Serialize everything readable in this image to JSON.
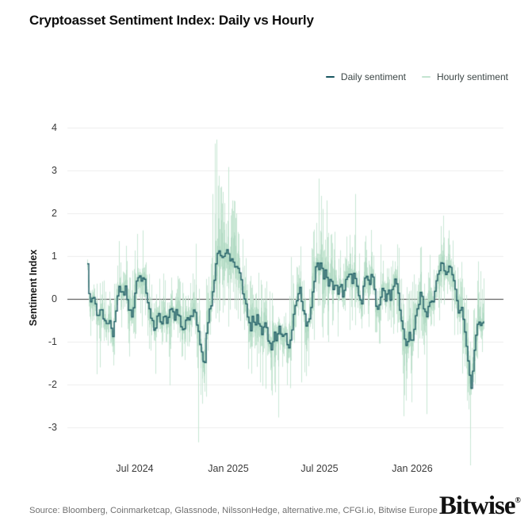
{
  "title": "Cryptoasset Sentiment Index: Daily vs Hourly",
  "legend": {
    "daily_label": "Daily sentiment",
    "hourly_label": "Hourly sentiment"
  },
  "source_line": "Source: Bloomberg, Coinmarketcap, Glassnode, NilssonHedge, alternative.me, CFGI.io, Bitwise Europe",
  "logo": {
    "text": "Bitwise",
    "reg_mark": "®"
  },
  "colors": {
    "daily": "#175560",
    "hourly": "#c3e4d0",
    "hourly_dense": "#a3d2b8",
    "zero_line": "#3d3d3d",
    "grid": "#ededed",
    "tick_text": "#3a3a3a",
    "muted_text": "#707070"
  },
  "chart_data": {
    "type": "line",
    "title": "Cryptoasset Sentiment Index: Daily vs Hourly",
    "xlabel": "",
    "ylabel": "Sentiment Index",
    "ylim": [
      -3.6,
      4.2
    ],
    "yticks": [
      4,
      3,
      2,
      1,
      0,
      -1,
      -2,
      -3
    ],
    "xticks": [
      {
        "label": "Jul 2024",
        "f": 0.12
      },
      {
        "label": "Jan 2025",
        "f": 0.356
      },
      {
        "label": "Jul 2025",
        "f": 0.586
      },
      {
        "label": "Jan 2026",
        "f": 0.82
      }
    ],
    "grid": "horizontal",
    "legend_position": "top-right",
    "zero_line": true,
    "x_range_note": "t is the fraction of the plotted period (approx Apr 2024 - Feb 2026)",
    "series": [
      {
        "name": "Daily sentiment",
        "type": "line",
        "color": "#175560",
        "jitter": 0.2,
        "points": [
          [
            0,
            0.8
          ],
          [
            0.006,
            -0.2
          ],
          [
            0.016,
            0.1
          ],
          [
            0.026,
            -0.45
          ],
          [
            0.036,
            -0.25
          ],
          [
            0.046,
            -0.67
          ],
          [
            0.056,
            -0.45
          ],
          [
            0.064,
            -0.92
          ],
          [
            0.074,
            0
          ],
          [
            0.082,
            0.3
          ],
          [
            0.09,
            0.1
          ],
          [
            0.096,
            0.35
          ],
          [
            0.104,
            -0.2
          ],
          [
            0.112,
            -0.43
          ],
          [
            0.12,
            0.2
          ],
          [
            0.128,
            0.5
          ],
          [
            0.136,
            0.45
          ],
          [
            0.144,
            0.55
          ],
          [
            0.152,
            -0.1
          ],
          [
            0.16,
            -0.4
          ],
          [
            0.17,
            -0.74
          ],
          [
            0.178,
            -0.35
          ],
          [
            0.186,
            -0.6
          ],
          [
            0.194,
            -0.3
          ],
          [
            0.202,
            -0.55
          ],
          [
            0.21,
            -0.2
          ],
          [
            0.218,
            -0.45
          ],
          [
            0.226,
            -0.3
          ],
          [
            0.234,
            -0.55
          ],
          [
            0.242,
            -0.67
          ],
          [
            0.25,
            -0.4
          ],
          [
            0.258,
            -0.55
          ],
          [
            0.266,
            -0.25
          ],
          [
            0.274,
            -0.45
          ],
          [
            0.28,
            -0.8
          ],
          [
            0.286,
            -1.1
          ],
          [
            0.294,
            -1.67
          ],
          [
            0.3,
            -0.9
          ],
          [
            0.306,
            -0.4
          ],
          [
            0.312,
            -0.15
          ],
          [
            0.318,
            0.3
          ],
          [
            0.324,
            0.8
          ],
          [
            0.33,
            1.25
          ],
          [
            0.334,
            0.9
          ],
          [
            0.338,
            1.2
          ],
          [
            0.342,
            0.75
          ],
          [
            0.346,
            1.1
          ],
          [
            0.35,
            0.95
          ],
          [
            0.354,
            1.15
          ],
          [
            0.358,
            0.8
          ],
          [
            0.362,
            1
          ],
          [
            0.366,
            0.85
          ],
          [
            0.37,
            0.95
          ],
          [
            0.374,
            0.7
          ],
          [
            0.38,
            0.75
          ],
          [
            0.386,
            0.45
          ],
          [
            0.392,
            0.2
          ],
          [
            0.398,
            -0.1
          ],
          [
            0.404,
            -0.35
          ],
          [
            0.41,
            -0.8
          ],
          [
            0.416,
            -0.45
          ],
          [
            0.422,
            -0.65
          ],
          [
            0.428,
            -0.35
          ],
          [
            0.434,
            -0.6
          ],
          [
            0.44,
            -0.8
          ],
          [
            0.446,
            -0.5
          ],
          [
            0.452,
            -0.75
          ],
          [
            0.458,
            -1.05
          ],
          [
            0.464,
            -1.17
          ],
          [
            0.47,
            -0.8
          ],
          [
            0.476,
            -0.95
          ],
          [
            0.482,
            -0.6
          ],
          [
            0.488,
            -0.85
          ],
          [
            0.494,
            -1
          ],
          [
            0.5,
            -0.75
          ],
          [
            0.506,
            -1.26
          ],
          [
            0.512,
            -0.9
          ],
          [
            0.518,
            -0.5
          ],
          [
            0.524,
            -0.2
          ],
          [
            0.53,
            0.1
          ],
          [
            0.536,
            0.3
          ],
          [
            0.542,
            -0.1
          ],
          [
            0.548,
            -0.45
          ],
          [
            0.554,
            -0.75
          ],
          [
            0.56,
            -0.4
          ],
          [
            0.566,
            0
          ],
          [
            0.572,
            0.45
          ],
          [
            0.578,
            0.93
          ],
          [
            0.584,
            0.7
          ],
          [
            0.59,
            0.85
          ],
          [
            0.596,
            0.5
          ],
          [
            0.602,
            0.65
          ],
          [
            0.608,
            0.3
          ],
          [
            0.614,
            0.5
          ],
          [
            0.62,
            0.2
          ],
          [
            0.626,
            0.45
          ],
          [
            0.632,
            0.15
          ],
          [
            0.638,
            0.4
          ],
          [
            0.644,
            0.1
          ],
          [
            0.65,
            0.35
          ],
          [
            0.656,
            0.55
          ],
          [
            0.662,
            0.7
          ],
          [
            0.668,
            0.45
          ],
          [
            0.674,
            0.65
          ],
          [
            0.68,
            0.3
          ],
          [
            0.686,
            0
          ],
          [
            0.692,
            -0.2
          ],
          [
            0.698,
            0.45
          ],
          [
            0.704,
            0.6
          ],
          [
            0.71,
            0.25
          ],
          [
            0.716,
            0.5
          ],
          [
            0.722,
            0.4
          ],
          [
            0.728,
            -0.1
          ],
          [
            0.734,
            -0.35
          ],
          [
            0.74,
            0.1
          ],
          [
            0.746,
            0.35
          ],
          [
            0.752,
            -0.15
          ],
          [
            0.758,
            0.25
          ],
          [
            0.764,
            -0.1
          ],
          [
            0.77,
            0.3
          ],
          [
            0.776,
            0.55
          ],
          [
            0.782,
            0.35
          ],
          [
            0.788,
            -0.3
          ],
          [
            0.794,
            -0.7
          ],
          [
            0.8,
            -1
          ],
          [
            0.806,
            -1.17
          ],
          [
            0.812,
            -0.85
          ],
          [
            0.818,
            -1.05
          ],
          [
            0.824,
            -0.7
          ],
          [
            0.83,
            -0.35
          ],
          [
            0.836,
            -0.1
          ],
          [
            0.842,
            0.15
          ],
          [
            0.848,
            -0.2
          ],
          [
            0.854,
            -0.45
          ],
          [
            0.86,
            -0.15
          ],
          [
            0.866,
            0.1
          ],
          [
            0.872,
            -0.1
          ],
          [
            0.878,
            0.25
          ],
          [
            0.884,
            0.5
          ],
          [
            0.89,
            0.75
          ],
          [
            0.896,
            0.9
          ],
          [
            0.902,
            0.6
          ],
          [
            0.908,
            0.72
          ],
          [
            0.914,
            0.85
          ],
          [
            0.92,
            0.55
          ],
          [
            0.926,
            0.3
          ],
          [
            0.932,
            -0.1
          ],
          [
            0.938,
            -0.35
          ],
          [
            0.944,
            -0.2
          ],
          [
            0.95,
            -0.6
          ],
          [
            0.956,
            -1.1
          ],
          [
            0.962,
            -1.6
          ],
          [
            0.968,
            -2.05
          ],
          [
            0.974,
            -1.4
          ],
          [
            0.98,
            -0.8
          ],
          [
            0.986,
            -0.5
          ],
          [
            0.992,
            -0.65
          ],
          [
            1,
            -0.45
          ]
        ]
      },
      {
        "name": "Hourly sentiment",
        "type": "band",
        "color": "#c3e4d0",
        "amplitude": [
          [
            0,
            0.55
          ],
          [
            0.06,
            0.75
          ],
          [
            0.12,
            0.8
          ],
          [
            0.18,
            0.75
          ],
          [
            0.26,
            0.7
          ],
          [
            0.29,
            0.95
          ],
          [
            0.31,
            1.25
          ],
          [
            0.33,
            1.5
          ],
          [
            0.35,
            1.3
          ],
          [
            0.37,
            1.1
          ],
          [
            0.39,
            0.9
          ],
          [
            0.42,
            0.95
          ],
          [
            0.46,
            1
          ],
          [
            0.5,
            0.95
          ],
          [
            0.53,
            0.8
          ],
          [
            0.57,
            1
          ],
          [
            0.584,
            1.2
          ],
          [
            0.61,
            0.9
          ],
          [
            0.65,
            0.8
          ],
          [
            0.69,
            0.85
          ],
          [
            0.72,
            0.8
          ],
          [
            0.76,
            0.85
          ],
          [
            0.79,
            1
          ],
          [
            0.81,
            1.05
          ],
          [
            0.84,
            0.8
          ],
          [
            0.87,
            0.75
          ],
          [
            0.896,
            0.85
          ],
          [
            0.93,
            0.8
          ],
          [
            0.96,
            1.1
          ],
          [
            0.98,
            0.9
          ],
          [
            1,
            0.7
          ]
        ],
        "spikes": [
          [
            0.032,
            -1.6
          ],
          [
            0.08,
            1.35
          ],
          [
            0.14,
            1.6
          ],
          [
            0.172,
            -1.75
          ],
          [
            0.28,
            -3.35
          ],
          [
            0.316,
            2.45
          ],
          [
            0.326,
            3.72
          ],
          [
            0.336,
            2.6
          ],
          [
            0.342,
            2.5
          ],
          [
            0.356,
            3.08
          ],
          [
            0.366,
            2.3
          ],
          [
            0.376,
            2
          ],
          [
            0.45,
            -2.1
          ],
          [
            0.466,
            -2.25
          ],
          [
            0.54,
            -1.95
          ],
          [
            0.584,
            2.81
          ],
          [
            0.594,
            2.1
          ],
          [
            0.604,
            2.3
          ],
          [
            0.676,
            2.45
          ],
          [
            0.798,
            -2.74
          ],
          [
            0.856,
            -2.69
          ],
          [
            0.892,
            1.7
          ],
          [
            0.912,
            1.6
          ],
          [
            0.966,
            -3.26
          ]
        ]
      }
    ]
  }
}
